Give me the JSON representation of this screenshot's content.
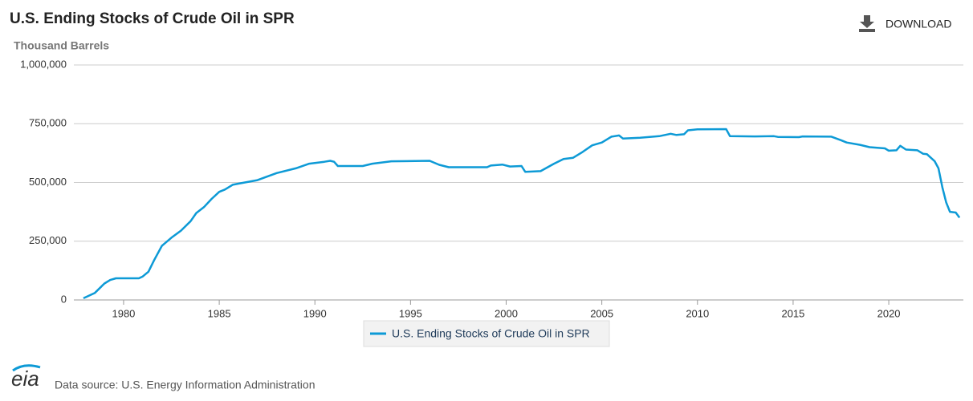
{
  "chart_data": {
    "type": "line",
    "title": "U.S. Ending Stocks of Crude Oil in SPR",
    "y_label": "Thousand Barrels",
    "download": "DOWNLOAD",
    "source": "Data source: U.S. Energy Information Administration",
    "logo": "eia",
    "xlim": [
      1977.4,
      2023.9
    ],
    "xticks": [
      1980,
      1985,
      1990,
      1995,
      2000,
      2005,
      2010,
      2015,
      2020
    ],
    "ylim": [
      0,
      1000000
    ],
    "yticks": [
      0,
      {
        "value": 250000,
        "label": "250,000"
      },
      {
        "value": 500000,
        "label": "500,000"
      },
      {
        "value": 750000,
        "label": "750,000"
      },
      {
        "value": 1000000,
        "label": "1,000,000"
      }
    ],
    "grid": true,
    "x": [
      1977.9,
      1978.5,
      1979.0,
      1979.3,
      1979.6,
      1980.0,
      1980.8,
      1981.0,
      1981.3,
      1981.6,
      1982.0,
      1982.5,
      1983.0,
      1983.5,
      1983.8,
      1984.2,
      1984.6,
      1985.0,
      1985.3,
      1985.7,
      1986.0,
      1987.0,
      1988.0,
      1989.0,
      1989.7,
      1990.5,
      1990.8,
      1991.0,
      1991.2,
      1992.5,
      1993.0,
      1994.0,
      1996.0,
      1996.5,
      1997.0,
      1999.0,
      1999.2,
      1999.8,
      2000.2,
      2000.8,
      2001.0,
      2001.8,
      2002.5,
      2003.0,
      2003.5,
      2004.0,
      2004.5,
      2005.0,
      2005.5,
      2005.9,
      2006.1,
      2007.0,
      2008.0,
      2008.6,
      2008.9,
      2009.3,
      2009.5,
      2010.0,
      2011.5,
      2011.7,
      2013.0,
      2014.0,
      2014.2,
      2015.3,
      2015.5,
      2017.0,
      2017.5,
      2017.8,
      2018.5,
      2019.0,
      2019.8,
      2020.0,
      2020.4,
      2020.6,
      2020.9,
      2021.5,
      2021.8,
      2022.0,
      2022.4,
      2022.6,
      2022.8,
      2023.0,
      2023.2,
      2023.5,
      2023.7
    ],
    "series": [
      {
        "name": "U.S. Ending Stocks of Crude Oil in SPR",
        "color": "#0d9ad6",
        "values": [
          7000,
          30000,
          70000,
          85000,
          92000,
          92000,
          92000,
          100000,
          120000,
          170000,
          230000,
          265000,
          295000,
          335000,
          370000,
          395000,
          430000,
          460000,
          470000,
          490000,
          495000,
          510000,
          540000,
          560000,
          580000,
          588000,
          592000,
          588000,
          570000,
          570000,
          580000,
          590000,
          592000,
          575000,
          565000,
          565000,
          572000,
          576000,
          568000,
          570000,
          545000,
          548000,
          580000,
          600000,
          605000,
          630000,
          658000,
          670000,
          695000,
          700000,
          687000,
          690000,
          697000,
          707000,
          702000,
          705000,
          722000,
          726000,
          727000,
          697000,
          696000,
          697000,
          694000,
          693000,
          696000,
          695000,
          680000,
          670000,
          660000,
          650000,
          645000,
          635000,
          637000,
          656000,
          640000,
          637000,
          622000,
          620000,
          590000,
          560000,
          480000,
          415000,
          375000,
          372000,
          350000
        ]
      }
    ]
  }
}
